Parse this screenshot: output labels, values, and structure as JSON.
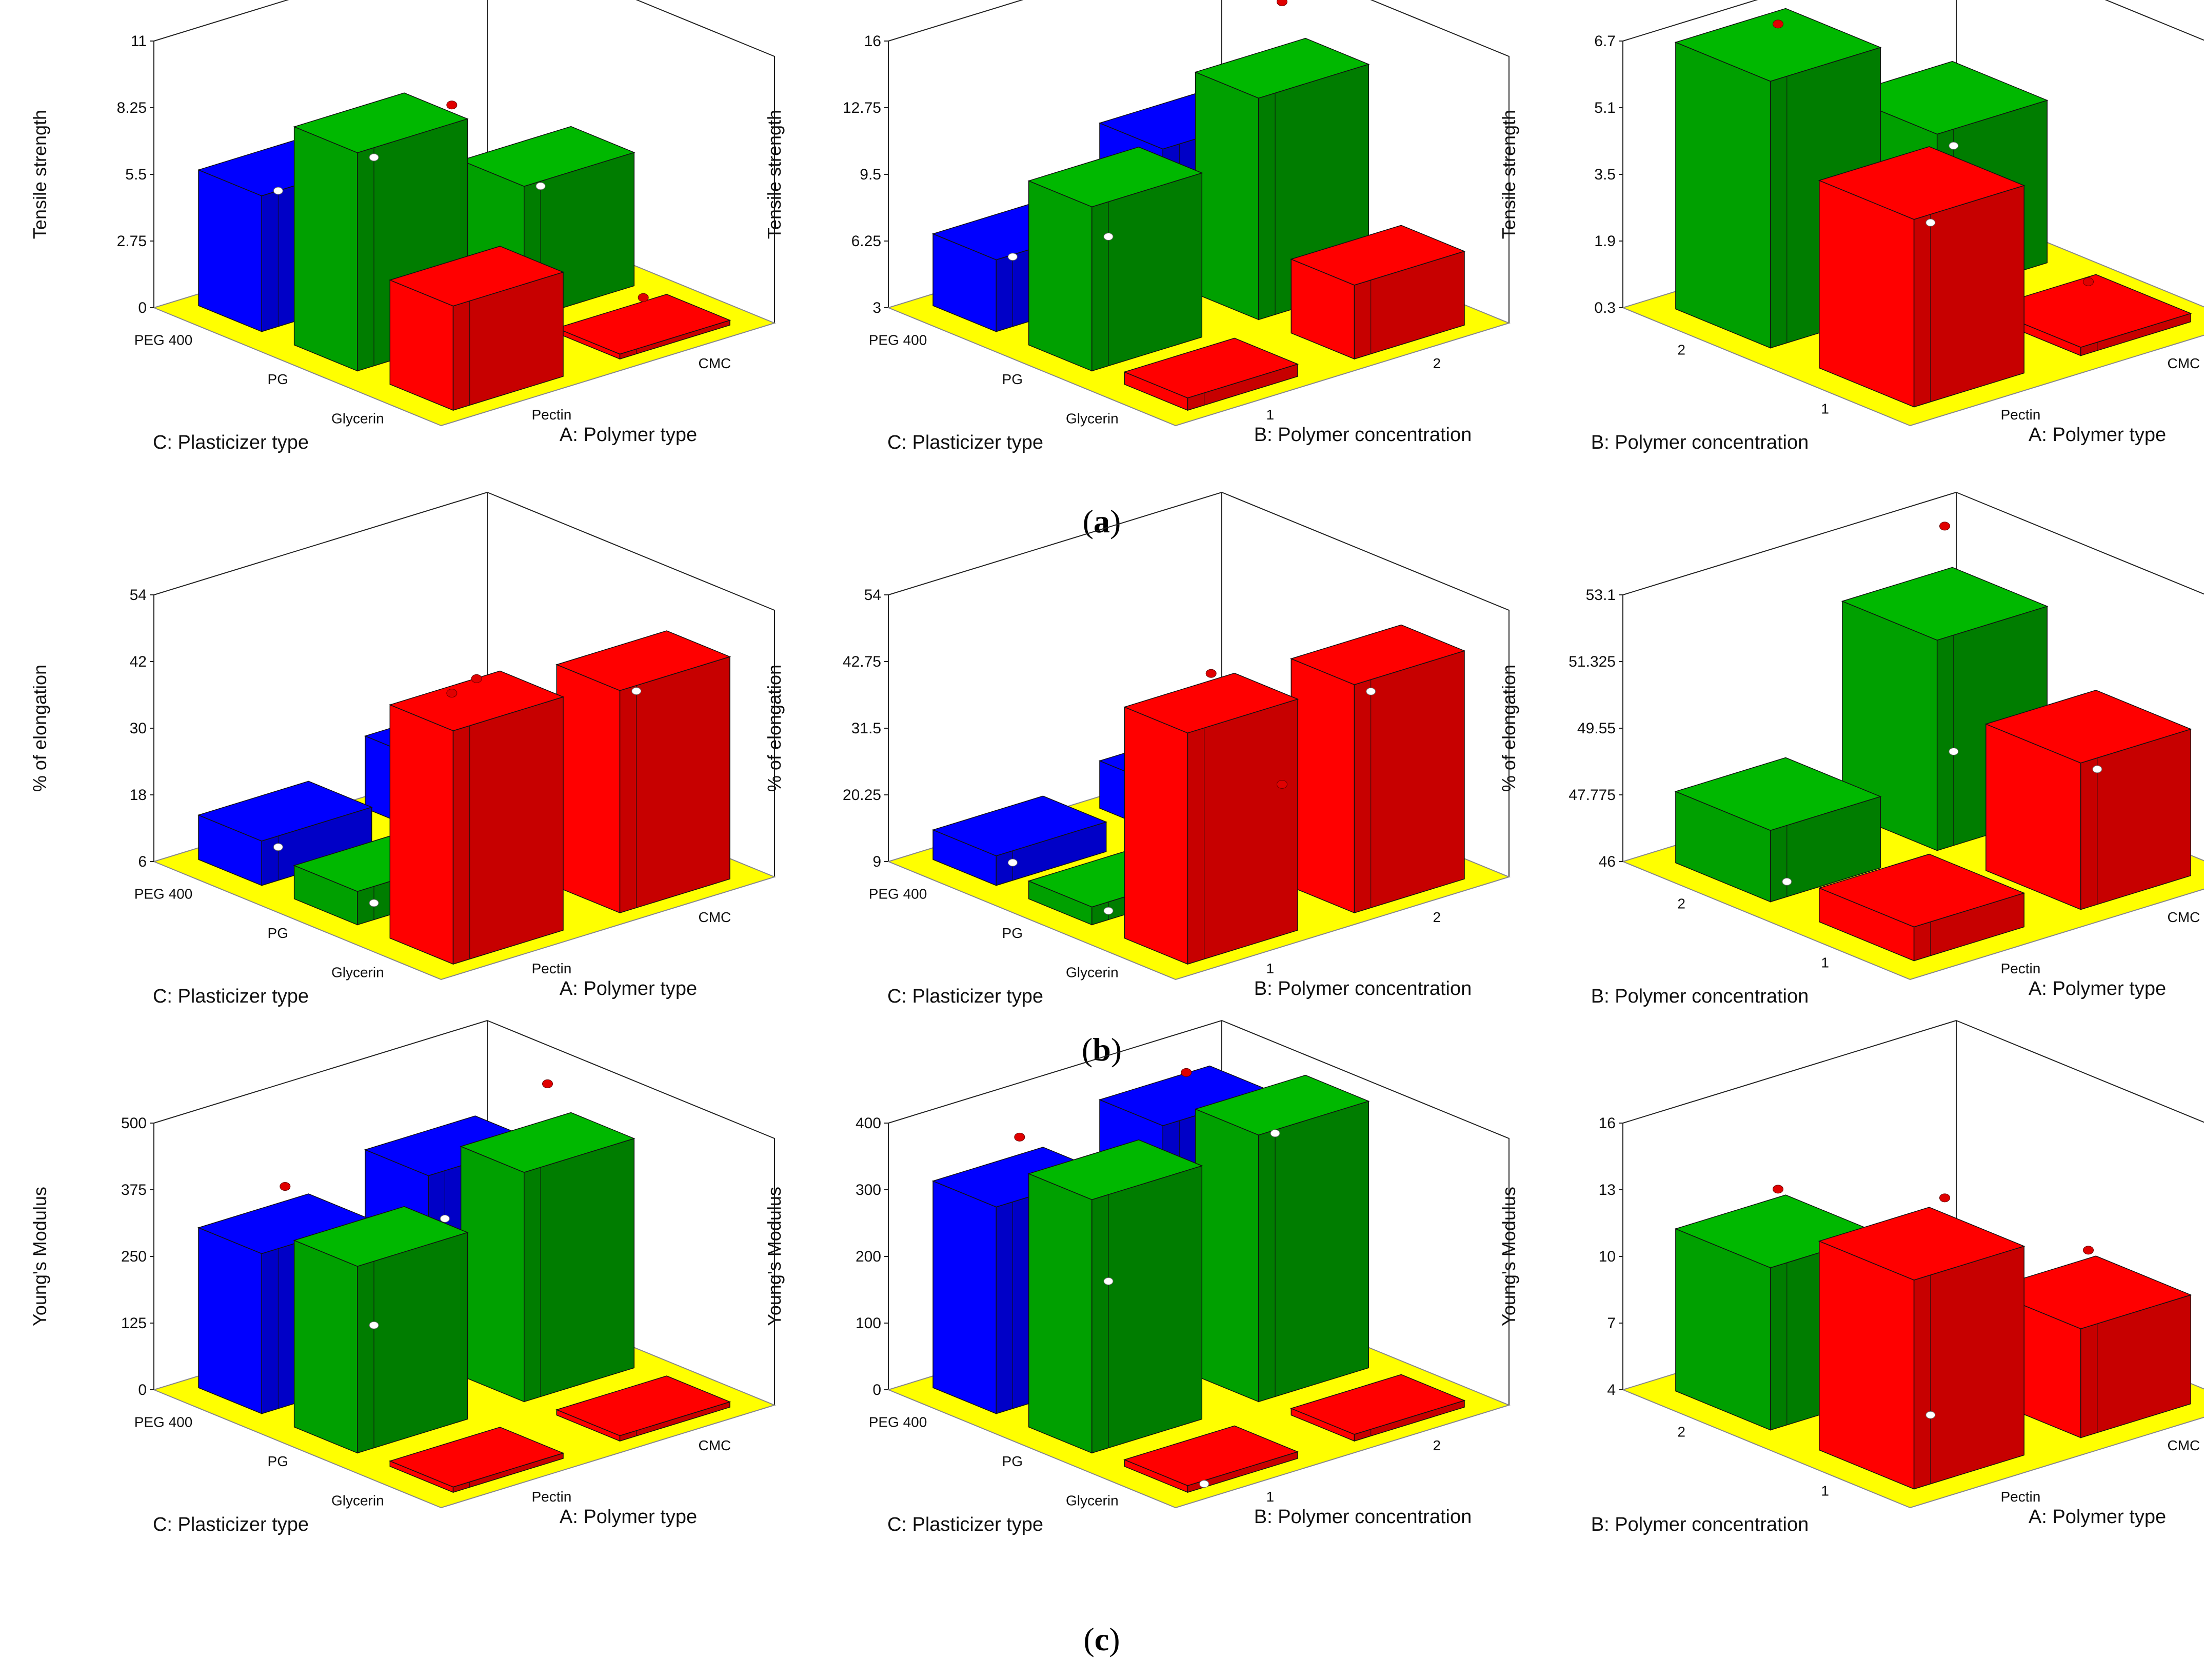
{
  "figure": {
    "row_labels": [
      {
        "open": "(",
        "letter": "a",
        "close": ")"
      },
      {
        "open": "(",
        "letter": "b",
        "close": ")"
      },
      {
        "open": "(",
        "letter": "c",
        "close": ")"
      }
    ]
  },
  "colors": {
    "floor": "#ffff00",
    "PEG 400": "#0000ff",
    "PG": "#00a000",
    "Glycerin": "#ff0000",
    "design_point": "#e00000",
    "prediction_point": "#ffffff"
  },
  "chart_data": [
    {
      "id": "a1",
      "type": "bar3d",
      "zlabel": "Tensile strength",
      "zticks": [
        "0",
        "2.75",
        "5.5",
        "8.25",
        "11"
      ],
      "zlim": [
        0,
        11
      ],
      "left_axis": {
        "label": "C: Plasticizer type",
        "ticks": [
          "PEG 400",
          "PG",
          "Glycerin"
        ]
      },
      "right_axis": {
        "label": "A: Polymer type",
        "ticks": [
          "Pectin",
          "CMC"
        ]
      },
      "bars": [
        {
          "left": "PEG 400",
          "right": "Pectin",
          "value": 5.6,
          "color_key": "PEG 400",
          "pred": 5.6
        },
        {
          "left": "PG",
          "right": "Pectin",
          "value": 9.0,
          "color_key": "PG",
          "pred": 8.6
        },
        {
          "left": "Glycerin",
          "right": "Pectin",
          "value": 4.3,
          "color_key": "Glycerin",
          "pred": null
        },
        {
          "left": "PEG 400",
          "right": "CMC",
          "value": 2.4,
          "color_key": "PEG 400",
          "pred": null
        },
        {
          "left": "PG",
          "right": "CMC",
          "value": 5.5,
          "color_key": "PG",
          "pred": 5.3
        },
        {
          "left": "Glycerin",
          "right": "CMC",
          "value": 0.2,
          "color_key": "Glycerin",
          "pred": null
        }
      ],
      "points": [
        {
          "left": "PEG 400",
          "right": "CMC",
          "value": 6.0
        },
        {
          "left": "Glycerin",
          "right": "CMC",
          "value": 1.3
        }
      ]
    },
    {
      "id": "a2",
      "type": "bar3d",
      "zlabel": "Tensile strength",
      "zticks": [
        "3",
        "6.25",
        "9.5",
        "12.75",
        "16"
      ],
      "zlim": [
        3,
        16
      ],
      "left_axis": {
        "label": "C: Plasticizer type",
        "ticks": [
          "PEG 400",
          "PG",
          "Glycerin"
        ]
      },
      "right_axis": {
        "label": "B: Polymer concentration",
        "ticks": [
          "1",
          "2"
        ]
      },
      "bars": [
        {
          "left": "PEG 400",
          "right": "1",
          "value": 6.5,
          "color_key": "PEG 400",
          "pred": 6.4
        },
        {
          "left": "PG",
          "right": "1",
          "value": 11.0,
          "color_key": "PG",
          "pred": 9.3
        },
        {
          "left": "Glycerin",
          "right": "1",
          "value": 3.6,
          "color_key": "Glycerin",
          "pred": null
        },
        {
          "left": "PEG 400",
          "right": "2",
          "value": 9.4,
          "color_key": "PEG 400",
          "pred": 8.0
        },
        {
          "left": "PG",
          "right": "2",
          "value": 13.8,
          "color_key": "PG",
          "pred": null
        },
        {
          "left": "Glycerin",
          "right": "2",
          "value": 6.6,
          "color_key": "Glycerin",
          "pred": null
        }
      ],
      "points": [
        {
          "left": "PG",
          "right": "2",
          "value": 18.3
        }
      ]
    },
    {
      "id": "a3",
      "type": "bar3d",
      "zlabel": "Tensile strength",
      "zticks": [
        "0.3",
        "1.9",
        "3.5",
        "5.1",
        "6.7"
      ],
      "zlim": [
        0.3,
        6.7
      ],
      "left_axis": {
        "label": "B: Polymer concentration",
        "ticks": [
          "2",
          "1"
        ]
      },
      "right_axis": {
        "label": "A: Polymer type",
        "ticks": [
          "Pectin",
          "CMC"
        ]
      },
      "bars": [
        {
          "left": "2",
          "right": "Pectin",
          "value": 6.7,
          "color_key": "PG",
          "pred": null
        },
        {
          "left": "2",
          "right": "CMC",
          "value": 4.2,
          "color_key": "PG",
          "pred": 3.8
        },
        {
          "left": "1",
          "right": "Pectin",
          "value": 4.8,
          "color_key": "Glycerin",
          "pred": 4.6
        },
        {
          "left": "1",
          "right": "CMC",
          "value": 0.5,
          "color_key": "Glycerin",
          "pred": null
        }
      ],
      "points": [
        {
          "left": "2",
          "right": "Pectin",
          "value": 7.2
        },
        {
          "left": "1",
          "right": "CMC",
          "value": 1.2
        }
      ]
    },
    {
      "id": "b1",
      "type": "bar3d",
      "zlabel": "% of elongation",
      "zticks": [
        "6",
        "18",
        "30",
        "42",
        "54"
      ],
      "zlim": [
        6,
        54
      ],
      "left_axis": {
        "label": "C: Plasticizer type",
        "ticks": [
          "PEG 400",
          "PG",
          "Glycerin"
        ]
      },
      "right_axis": {
        "label": "A: Polymer type",
        "ticks": [
          "Pectin",
          "CMC"
        ]
      },
      "bars": [
        {
          "left": "PEG 400",
          "right": "Pectin",
          "value": 14.0,
          "color_key": "PEG 400",
          "pred": 12.0
        },
        {
          "left": "PG",
          "right": "Pectin",
          "value": 12.0,
          "color_key": "PG",
          "pred": 9.0
        },
        {
          "left": "Glycerin",
          "right": "Pectin",
          "value": 48.0,
          "color_key": "Glycerin",
          "pred": null
        },
        {
          "left": "PEG 400",
          "right": "CMC",
          "value": 19.0,
          "color_key": "PEG 400",
          "pred": null
        },
        {
          "left": "PG",
          "right": "CMC",
          "value": 14.0,
          "color_key": "PG",
          "pred": 8.0
        },
        {
          "left": "Glycerin",
          "right": "CMC",
          "value": 46.0,
          "color_key": "Glycerin",
          "pred": 45.0
        }
      ],
      "points": [
        {
          "left": "Glycerin",
          "right": "Pectin",
          "value": 52.0
        },
        {
          "left": "PEG 400",
          "right": "CMC",
          "value": 26.0
        }
      ]
    },
    {
      "id": "b2",
      "type": "bar3d",
      "zlabel": "% of elongation",
      "zticks": [
        "9",
        "20.25",
        "31.5",
        "42.75",
        "54"
      ],
      "zlim": [
        9,
        54
      ],
      "left_axis": {
        "label": "C: Plasticizer type",
        "ticks": [
          "PEG 400",
          "PG",
          "Glycerin"
        ]
      },
      "right_axis": {
        "label": "B: Polymer concentration",
        "ticks": [
          "1",
          "2"
        ]
      },
      "bars": [
        {
          "left": "PEG 400",
          "right": "1",
          "value": 14.0,
          "color_key": "PEG 400",
          "pred": 12.0
        },
        {
          "left": "PG",
          "right": "1",
          "value": 12.0,
          "color_key": "PG",
          "pred": 10.5
        },
        {
          "left": "Glycerin",
          "right": "1",
          "value": 48.0,
          "color_key": "Glycerin",
          "pred": null
        },
        {
          "left": "PEG 400",
          "right": "2",
          "value": 17.0,
          "color_key": "PEG 400",
          "pred": 14.5
        },
        {
          "left": "PG",
          "right": "2",
          "value": 13.0,
          "color_key": "PG",
          "pred": 12.0
        },
        {
          "left": "Glycerin",
          "right": "2",
          "value": 47.5,
          "color_key": "Glycerin",
          "pred": 45.5
        }
      ],
      "points": [
        {
          "left": "Glycerin",
          "right": "1",
          "value": 53.0
        },
        {
          "left": "PG",
          "right": "2",
          "value": 19.0
        }
      ]
    },
    {
      "id": "b3",
      "type": "bar3d",
      "zlabel": "% of elongation",
      "zticks": [
        "46",
        "47.775",
        "49.55",
        "51.325",
        "53.1"
      ],
      "zlim": [
        46,
        53.1
      ],
      "left_axis": {
        "label": "B: Polymer concentration",
        "ticks": [
          "2",
          "1"
        ]
      },
      "right_axis": {
        "label": "A: Polymer type",
        "ticks": [
          "Pectin",
          "CMC"
        ]
      },
      "bars": [
        {
          "left": "2",
          "right": "Pectin",
          "value": 47.9,
          "color_key": "PG",
          "pred": 46.4
        },
        {
          "left": "2",
          "right": "CMC",
          "value": 51.6,
          "color_key": "PG",
          "pred": 48.5
        },
        {
          "left": "1",
          "right": "Pectin",
          "value": 46.9,
          "color_key": "Glycerin",
          "pred": null
        },
        {
          "left": "1",
          "right": "CMC",
          "value": 49.9,
          "color_key": "Glycerin",
          "pred": 49.6
        }
      ],
      "points": [
        {
          "left": "2",
          "right": "CMC",
          "value": 54.6
        }
      ]
    },
    {
      "id": "c1",
      "type": "bar3d",
      "zlabel": "Young's Modulus",
      "zticks": [
        "0",
        "125",
        "250",
        "375",
        "500"
      ],
      "zlim": [
        0,
        500
      ],
      "left_axis": {
        "label": "C: Plasticizer type",
        "ticks": [
          "PEG 400",
          "PG",
          "Glycerin"
        ]
      },
      "right_axis": {
        "label": "A: Polymer type",
        "ticks": [
          "Pectin",
          "CMC"
        ]
      },
      "bars": [
        {
          "left": "PEG 400",
          "right": "Pectin",
          "value": 300,
          "color_key": "PEG 400",
          "pred": null
        },
        {
          "left": "PG",
          "right": "Pectin",
          "value": 350,
          "color_key": "PG",
          "pred": 230
        },
        {
          "left": "Glycerin",
          "right": "Pectin",
          "value": 10,
          "color_key": "Glycerin",
          "pred": null
        },
        {
          "left": "PEG 400",
          "right": "CMC",
          "value": 350,
          "color_key": "PEG 400",
          "pred": 260
        },
        {
          "left": "PG",
          "right": "CMC",
          "value": 430,
          "color_key": "PG",
          "pred": null
        },
        {
          "left": "Glycerin",
          "right": "CMC",
          "value": 10,
          "color_key": "Glycerin",
          "pred": null
        }
      ],
      "points": [
        {
          "left": "PEG 400",
          "right": "Pectin",
          "value": 370
        },
        {
          "left": "PG",
          "right": "CMC",
          "value": 590
        }
      ]
    },
    {
      "id": "c2",
      "type": "bar3d",
      "zlabel": "Young's Modulus",
      "zticks": [
        "0",
        "100",
        "200",
        "300",
        "400"
      ],
      "zlim": [
        0,
        400
      ],
      "left_axis": {
        "label": "C: Plasticizer type",
        "ticks": [
          "PEG 400",
          "PG",
          "Glycerin"
        ]
      },
      "right_axis": {
        "label": "B: Polymer concentration",
        "ticks": [
          "1",
          "2"
        ]
      },
      "bars": [
        {
          "left": "PEG 400",
          "right": "1",
          "value": 310,
          "color_key": "PEG 400",
          "pred": null
        },
        {
          "left": "PG",
          "right": "1",
          "value": 380,
          "color_key": "PG",
          "pred": 250
        },
        {
          "left": "Glycerin",
          "right": "1",
          "value": 10,
          "color_key": "Glycerin",
          "pred": 5
        },
        {
          "left": "PEG 400",
          "right": "2",
          "value": 355,
          "color_key": "PEG 400",
          "pred": null
        },
        {
          "left": "PG",
          "right": "2",
          "value": 400,
          "color_key": "PG",
          "pred": 395
        },
        {
          "left": "Glycerin",
          "right": "2",
          "value": 10,
          "color_key": "Glycerin",
          "pred": null
        }
      ],
      "points": [
        {
          "left": "PEG 400",
          "right": "1",
          "value": 370
        },
        {
          "left": "PEG 400",
          "right": "2",
          "value": 390
        }
      ]
    },
    {
      "id": "c3",
      "type": "bar3d",
      "zlabel": "Young's Modulus",
      "zticks": [
        "4",
        "7",
        "10",
        "13",
        "16"
      ],
      "zlim": [
        4,
        16
      ],
      "left_axis": {
        "label": "B: Polymer concentration",
        "ticks": [
          "2",
          "1"
        ]
      },
      "right_axis": {
        "label": "A: Polymer type",
        "ticks": [
          "Pectin",
          "CMC"
        ]
      },
      "bars": [
        {
          "left": "2",
          "right": "Pectin",
          "value": 11.3,
          "color_key": "PG",
          "pred": null
        },
        {
          "left": "2",
          "right": "CMC",
          "value": 4.4,
          "color_key": "PG",
          "pred": null
        },
        {
          "left": "1",
          "right": "Pectin",
          "value": 13.4,
          "color_key": "Glycerin",
          "pred": 7.1
        },
        {
          "left": "1",
          "right": "CMC",
          "value": 8.9,
          "color_key": "Glycerin",
          "pred": null
        }
      ],
      "points": [
        {
          "left": "2",
          "right": "Pectin",
          "value": 13.2
        },
        {
          "left": "2",
          "right": "CMC",
          "value": 10.5
        },
        {
          "left": "1",
          "right": "CMC",
          "value": 10.8
        }
      ]
    }
  ]
}
